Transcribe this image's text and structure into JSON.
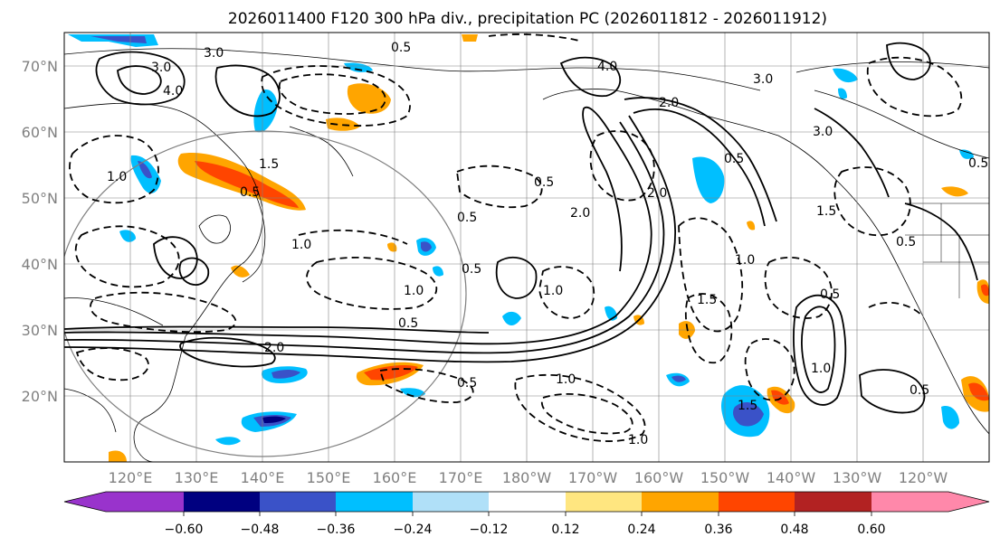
{
  "title": "2026011400 F120 300 hPa div., precipitation PC (2026011812 - 2026011912)",
  "lat_labels": [
    "70°N",
    "60°N",
    "50°N",
    "40°N",
    "30°N",
    "20°N"
  ],
  "lon_labels": [
    "120°E",
    "130°E",
    "140°E",
    "150°E",
    "160°E",
    "170°E",
    "180°W",
    "170°W",
    "160°W",
    "150°W",
    "140°W",
    "130°W",
    "120°W"
  ],
  "colorbar": {
    "ticks": [
      "−0.60",
      "−0.48",
      "−0.36",
      "−0.24",
      "−0.12",
      "0.12",
      "0.24",
      "0.36",
      "0.48",
      "0.60"
    ],
    "colors": [
      "#9933cc",
      "#000080",
      "#3a52c8",
      "#00bfff",
      "#b0e0f8",
      "#ffffff",
      "#ffe680",
      "#ffa500",
      "#ff4500",
      "#b22222",
      "#ff88aa"
    ]
  },
  "contour_labels": [
    "3.0",
    "4.0",
    "0.5",
    "3.0",
    "4.0",
    "2.0",
    "3.0",
    "1.0",
    "1.5",
    "0.5",
    "2.0",
    "1.0",
    "0.5",
    "1.0",
    "0.5",
    "2.0",
    "0.5",
    "1.0",
    "1.0",
    "0.5",
    "1.0",
    "1.5",
    "0.5",
    "1.0",
    "0.5",
    "1.0",
    "2.0",
    "1.5",
    "0.5",
    "0.5",
    "3.0",
    "1.5",
    "0.5",
    "0.5"
  ]
}
